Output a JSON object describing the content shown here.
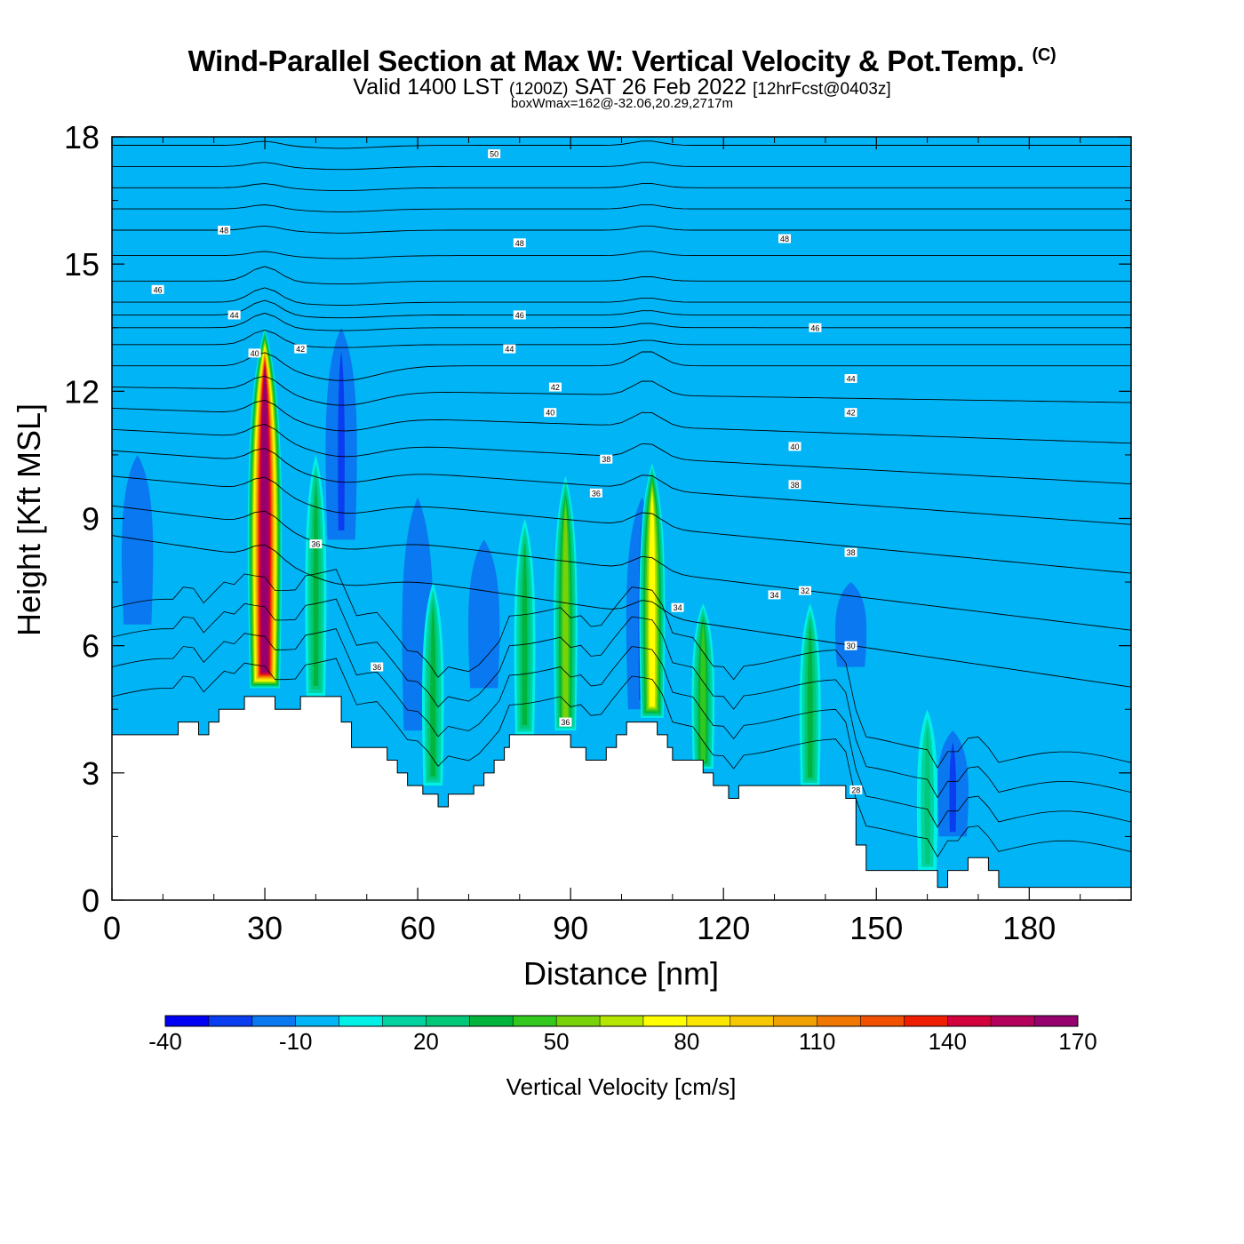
{
  "header": {
    "title": "Wind-Parallel Section at Max W: Vertical Velocity & Pot.Temp.",
    "copyright_mark": "(C)",
    "valid_prefix": "Valid 1400 LST",
    "valid_zulu": "(1200Z)",
    "valid_date": "SAT 26 Feb 2022",
    "forecast_info": "[12hrFcst@0403z]",
    "box_info": "boxWmax=162@-32.06,20.29,2717m"
  },
  "chart_data": {
    "type": "heatmap",
    "xlabel": "Distance [nm]",
    "ylabel": "Height [Kft MSL]",
    "xlim": [
      0,
      200
    ],
    "ylim": [
      0,
      18
    ],
    "xticks": [
      0,
      30,
      60,
      90,
      120,
      150,
      180
    ],
    "yticks": [
      0,
      3,
      6,
      9,
      12,
      15,
      18
    ],
    "background_level_cms": -10,
    "colorbar": {
      "label": "Vertical Velocity [cm/s]",
      "tick_values": [
        -40,
        -10,
        20,
        50,
        80,
        110,
        140,
        170
      ],
      "levels": [
        -40,
        -30,
        -20,
        -10,
        0,
        10,
        20,
        30,
        40,
        50,
        60,
        70,
        80,
        90,
        100,
        110,
        120,
        130,
        140,
        150,
        160,
        170
      ],
      "colors": [
        "#0000f5",
        "#0a3cf0",
        "#0a78f0",
        "#00b4f5",
        "#00f0e6",
        "#00d2a0",
        "#00c878",
        "#00b43c",
        "#32c81e",
        "#78d20a",
        "#b4e600",
        "#ffff00",
        "#fae600",
        "#f5c800",
        "#f0a000",
        "#f07800",
        "#f05000",
        "#f01e00",
        "#d2003c",
        "#b4005a",
        "#96006e"
      ]
    },
    "terrain_kft": [
      [
        0,
        3.9
      ],
      [
        13,
        3.9
      ],
      [
        13,
        4.2
      ],
      [
        17,
        4.2
      ],
      [
        17,
        3.9
      ],
      [
        19,
        3.9
      ],
      [
        19,
        4.2
      ],
      [
        21,
        4.2
      ],
      [
        21,
        4.5
      ],
      [
        26,
        4.5
      ],
      [
        26,
        4.8
      ],
      [
        32,
        4.8
      ],
      [
        32,
        4.5
      ],
      [
        37,
        4.5
      ],
      [
        37,
        4.8
      ],
      [
        45,
        4.8
      ],
      [
        45,
        4.2
      ],
      [
        47,
        4.2
      ],
      [
        47,
        3.6
      ],
      [
        54,
        3.6
      ],
      [
        54,
        3.3
      ],
      [
        56,
        3.3
      ],
      [
        56,
        3.0
      ],
      [
        58,
        3.0
      ],
      [
        58,
        2.7
      ],
      [
        61,
        2.7
      ],
      [
        61,
        2.5
      ],
      [
        64,
        2.5
      ],
      [
        64,
        2.2
      ],
      [
        66,
        2.2
      ],
      [
        66,
        2.5
      ],
      [
        71,
        2.5
      ],
      [
        71,
        2.7
      ],
      [
        73,
        2.7
      ],
      [
        73,
        3.0
      ],
      [
        75,
        3.0
      ],
      [
        75,
        3.3
      ],
      [
        77,
        3.3
      ],
      [
        77,
        3.6
      ],
      [
        78,
        3.6
      ],
      [
        78,
        3.9
      ],
      [
        90,
        3.9
      ],
      [
        90,
        3.6
      ],
      [
        93,
        3.6
      ],
      [
        93,
        3.3
      ],
      [
        97,
        3.3
      ],
      [
        97,
        3.6
      ],
      [
        99,
        3.6
      ],
      [
        99,
        3.9
      ],
      [
        101,
        3.9
      ],
      [
        101,
        4.2
      ],
      [
        107,
        4.2
      ],
      [
        107,
        3.9
      ],
      [
        109,
        3.9
      ],
      [
        109,
        3.6
      ],
      [
        110,
        3.6
      ],
      [
        110,
        3.3
      ],
      [
        116,
        3.3
      ],
      [
        116,
        3.0
      ],
      [
        118,
        3.0
      ],
      [
        118,
        2.7
      ],
      [
        121,
        2.7
      ],
      [
        121,
        2.4
      ],
      [
        123,
        2.4
      ],
      [
        123,
        2.7
      ],
      [
        144,
        2.7
      ],
      [
        144,
        2.4
      ],
      [
        146,
        2.4
      ],
      [
        146,
        1.3
      ],
      [
        148,
        1.3
      ],
      [
        148,
        0.7
      ],
      [
        162,
        0.7
      ],
      [
        162,
        0.3
      ],
      [
        164,
        0.3
      ],
      [
        164,
        0.7
      ],
      [
        168,
        0.7
      ],
      [
        168,
        1.0
      ],
      [
        172,
        1.0
      ],
      [
        172,
        0.7
      ],
      [
        174,
        0.7
      ],
      [
        174,
        0.3
      ],
      [
        200,
        0.3
      ]
    ],
    "updraft_cells": [
      {
        "x": 30,
        "y_base": 5,
        "y_top": 13.5,
        "max_cms": 162
      },
      {
        "x": 89,
        "y_base": 4,
        "y_top": 10.0,
        "max_cms": 55
      },
      {
        "x": 106,
        "y_base": 4.3,
        "y_top": 10.3,
        "max_cms": 75
      },
      {
        "x": 116,
        "y_base": 3.1,
        "y_top": 7.0,
        "max_cms": 45
      },
      {
        "x": 63,
        "y_base": 2.7,
        "y_top": 7.5,
        "max_cms": 35
      },
      {
        "x": 40,
        "y_base": 4.8,
        "y_top": 10.5,
        "max_cms": 30
      },
      {
        "x": 81,
        "y_base": 3.9,
        "y_top": 9.0,
        "max_cms": 30
      },
      {
        "x": 137,
        "y_base": 2.7,
        "y_top": 7.0,
        "max_cms": 30
      },
      {
        "x": 160,
        "y_base": 0.7,
        "y_top": 4.5,
        "max_cms": 25
      }
    ],
    "downdraft_cells": [
      {
        "x": 45,
        "y_base": 8.5,
        "y_top": 13.5,
        "min_cms": -30
      },
      {
        "x": 60,
        "y_base": 4,
        "y_top": 9.5,
        "min_cms": -20
      },
      {
        "x": 73,
        "y_base": 5,
        "y_top": 8.5,
        "min_cms": -20
      },
      {
        "x": 104,
        "y_base": 4.5,
        "y_top": 9.5,
        "min_cms": -30
      },
      {
        "x": 165,
        "y_base": 1.5,
        "y_top": 4.0,
        "min_cms": -30
      },
      {
        "x": 5,
        "y_base": 6.5,
        "y_top": 10.5,
        "min_cms": -20
      },
      {
        "x": 145,
        "y_base": 5.5,
        "y_top": 7.5,
        "min_cms": -20
      }
    ],
    "isentrope_labels": [
      {
        "text": "50",
        "x": 75,
        "y": 17.6
      },
      {
        "text": "48",
        "x": 22,
        "y": 15.8
      },
      {
        "text": "48",
        "x": 80,
        "y": 15.5
      },
      {
        "text": "48",
        "x": 132,
        "y": 15.6
      },
      {
        "text": "46",
        "x": 9,
        "y": 14.4
      },
      {
        "text": "46",
        "x": 80,
        "y": 13.8
      },
      {
        "text": "46",
        "x": 138,
        "y": 13.5
      },
      {
        "text": "44",
        "x": 24,
        "y": 13.8
      },
      {
        "text": "44",
        "x": 78,
        "y": 13.0
      },
      {
        "text": "44",
        "x": 145,
        "y": 12.3
      },
      {
        "text": "42",
        "x": 37,
        "y": 13.0
      },
      {
        "text": "42",
        "x": 87,
        "y": 12.1
      },
      {
        "text": "42",
        "x": 145,
        "y": 11.5
      },
      {
        "text": "40",
        "x": 28,
        "y": 12.9
      },
      {
        "text": "40",
        "x": 86,
        "y": 11.5
      },
      {
        "text": "40",
        "x": 134,
        "y": 10.7
      },
      {
        "text": "38",
        "x": 97,
        "y": 10.4
      },
      {
        "text": "38",
        "x": 134,
        "y": 9.8
      },
      {
        "text": "38",
        "x": 145,
        "y": 8.2
      },
      {
        "text": "36",
        "x": 40,
        "y": 8.4
      },
      {
        "text": "36",
        "x": 52,
        "y": 5.5
      },
      {
        "text": "36",
        "x": 95,
        "y": 9.6
      },
      {
        "text": "36",
        "x": 89,
        "y": 4.2
      },
      {
        "text": "34",
        "x": 111,
        "y": 6.9
      },
      {
        "text": "34",
        "x": 130,
        "y": 7.2
      },
      {
        "text": "32",
        "x": 136,
        "y": 7.3
      },
      {
        "text": "30",
        "x": 145,
        "y": 6.0
      },
      {
        "text": "28",
        "x": 146,
        "y": 2.6
      }
    ]
  }
}
